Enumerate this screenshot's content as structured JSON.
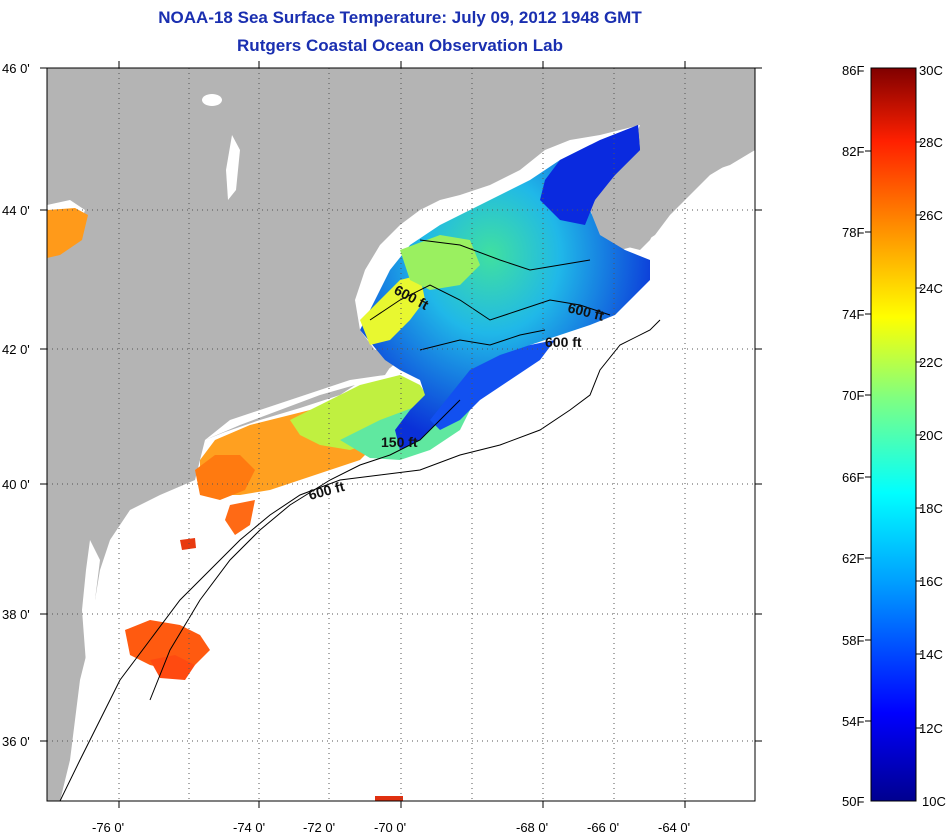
{
  "title": {
    "line1": "NOAA-18 Sea Surface Temperature:  July 09, 2012 1948 GMT",
    "line2": "Rutgers Coastal Ocean Observation Lab"
  },
  "map": {
    "lat_ticks": [
      "46 0'",
      "44 0'",
      "42 0'",
      "40 0'",
      "38 0'",
      "36 0'"
    ],
    "lon_ticks": [
      "-76 0'",
      "-74 0'",
      "-72 0'",
      "-70 0'",
      "-68 0'",
      "-66 0'",
      "-64 0'"
    ],
    "contour_labels": [
      "600 ft",
      "600 ft",
      "600 ft",
      "150 ft",
      "600 ft"
    ],
    "colors": {
      "land": "#b4b4b4",
      "water_nodata": "#ffffff"
    }
  },
  "colorbar": {
    "fahrenheit_labels": [
      "86F",
      "82F",
      "78F",
      "74F",
      "70F",
      "66F",
      "62F",
      "58F",
      "54F",
      "50F"
    ],
    "celsius_labels": [
      "30C",
      "28C",
      "26C",
      "24C",
      "22C",
      "20C",
      "18C",
      "16C",
      "14C",
      "12C",
      "10C"
    ]
  }
}
